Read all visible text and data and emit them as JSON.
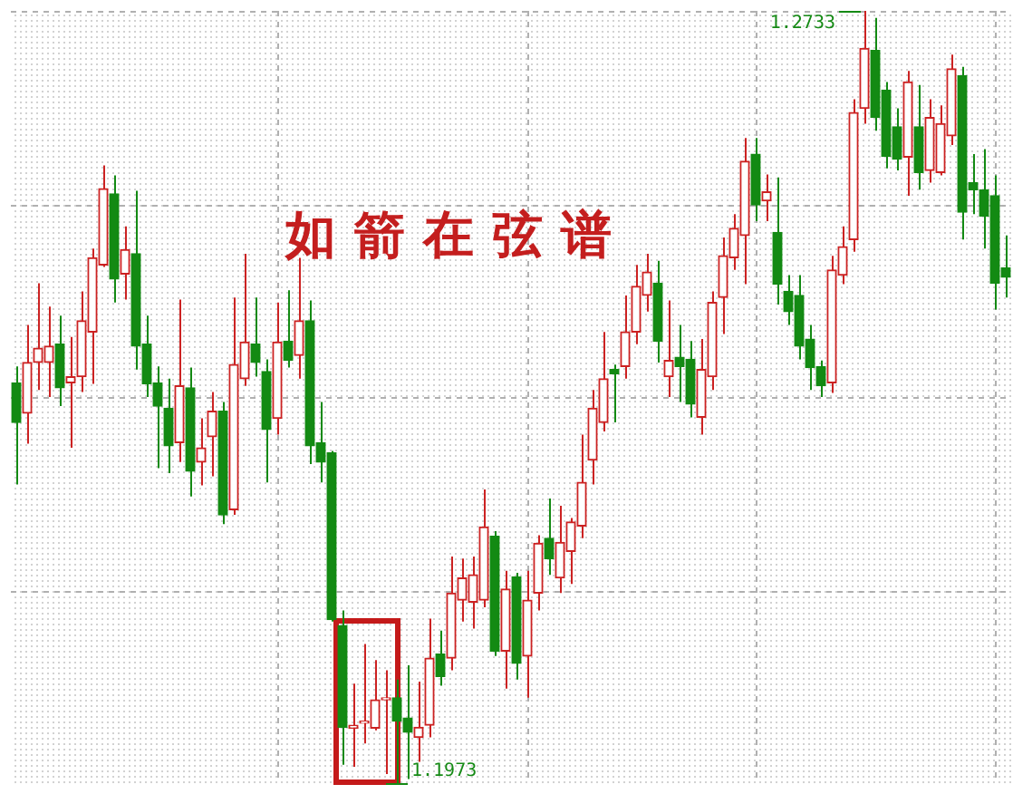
{
  "chart_data": {
    "type": "candlestick",
    "title": "如箭在弦谱",
    "categories": [
      null,
      null,
      null,
      null,
      null,
      null,
      null,
      null,
      null,
      null,
      null,
      null,
      null,
      null,
      null,
      null,
      null,
      null,
      null,
      null,
      null,
      null,
      null,
      null,
      null,
      null,
      null,
      null,
      null,
      null,
      null,
      null,
      null,
      null,
      null,
      null,
      null,
      null,
      null,
      null,
      null,
      null,
      null,
      null,
      null,
      null,
      null,
      null,
      null,
      null,
      null,
      null,
      null,
      null,
      null,
      null,
      null,
      null,
      null,
      null,
      null,
      null,
      null,
      null,
      null,
      null,
      null,
      null,
      null,
      null,
      null,
      null,
      null,
      null,
      null,
      null,
      null,
      null,
      null,
      null,
      null,
      null,
      null,
      null,
      null,
      null,
      null,
      null,
      null,
      null,
      null,
      null
    ],
    "ohlc": [
      [
        1.2367,
        1.2383,
        1.2267,
        1.2328
      ],
      [
        1.2337,
        1.2424,
        1.2307,
        1.2387
      ],
      [
        1.2387,
        1.2465,
        1.236,
        1.2401
      ],
      [
        1.2387,
        1.2442,
        1.2353,
        1.2403
      ],
      [
        1.2405,
        1.2433,
        1.2344,
        1.2362
      ],
      [
        1.2367,
        1.2412,
        1.2303,
        1.2373
      ],
      [
        1.2373,
        1.2457,
        1.2358,
        1.2428
      ],
      [
        1.2417,
        1.2499,
        1.2366,
        1.249
      ],
      [
        1.2483,
        1.2581,
        1.2481,
        1.2558
      ],
      [
        1.2553,
        1.2571,
        1.2446,
        1.2469
      ],
      [
        1.2474,
        1.2521,
        1.2449,
        1.2498
      ],
      [
        1.2494,
        1.2556,
        1.238,
        1.2403
      ],
      [
        1.2405,
        1.2433,
        1.2353,
        1.2366
      ],
      [
        1.2367,
        1.2383,
        1.2283,
        1.2344
      ],
      [
        1.2342,
        1.2371,
        1.2278,
        1.2305
      ],
      [
        1.2308,
        1.2449,
        1.2289,
        1.2364
      ],
      [
        1.2362,
        1.2382,
        1.2255,
        1.228
      ],
      [
        1.2289,
        1.2332,
        1.2266,
        1.2303
      ],
      [
        1.2314,
        1.2358,
        1.2275,
        1.2339
      ],
      [
        1.2339,
        1.2348,
        1.2228,
        1.2237
      ],
      [
        1.2242,
        1.2451,
        1.2237,
        1.2385
      ],
      [
        1.2371,
        1.2494,
        1.2364,
        1.2407
      ],
      [
        1.2405,
        1.2451,
        1.2373,
        1.2387
      ],
      [
        1.2378,
        1.239,
        1.2269,
        1.2321
      ],
      [
        1.2332,
        1.2446,
        1.2316,
        1.2407
      ],
      [
        1.2408,
        1.2458,
        1.2382,
        1.2389
      ],
      [
        1.2394,
        1.249,
        1.2371,
        1.2428
      ],
      [
        1.2428,
        1.2448,
        1.2287,
        1.2305
      ],
      [
        1.2308,
        1.2348,
        1.2269,
        1.2289
      ],
      [
        1.2298,
        1.23,
        1.2132,
        1.2134
      ],
      [
        1.2128,
        1.2143,
        1.1991,
        1.2028
      ],
      [
        1.2027,
        1.2071,
        1.1989,
        1.203
      ],
      [
        1.2032,
        1.211,
        1.2012,
        1.2034
      ],
      [
        1.2027,
        1.2094,
        1.2025,
        1.2055
      ],
      [
        1.2055,
        1.2084,
        1.1982,
        1.2057
      ],
      [
        1.2057,
        1.2075,
        1.1973,
        1.2034
      ],
      [
        1.2037,
        1.2089,
        1.1977,
        1.2023
      ],
      [
        1.2018,
        1.2073,
        1.1994,
        1.2028
      ],
      [
        1.203,
        1.2135,
        1.2018,
        1.2096
      ],
      [
        1.21,
        1.2123,
        1.2069,
        1.2078
      ],
      [
        1.2096,
        1.2196,
        1.2084,
        1.216
      ],
      [
        1.2153,
        1.2194,
        1.2132,
        1.2175
      ],
      [
        1.2151,
        1.2196,
        1.2125,
        1.2178
      ],
      [
        1.2153,
        1.2262,
        1.2146,
        1.2225
      ],
      [
        1.2216,
        1.2221,
        1.2098,
        1.2103
      ],
      [
        1.2103,
        1.2182,
        1.2066,
        1.2164
      ],
      [
        1.2176,
        1.218,
        1.2075,
        1.2091
      ],
      [
        1.2098,
        1.2182,
        1.2057,
        1.2153
      ],
      [
        1.216,
        1.2217,
        1.2143,
        1.2209
      ],
      [
        1.2214,
        1.2253,
        1.2178,
        1.2194
      ],
      [
        1.2175,
        1.2246,
        1.216,
        1.221
      ],
      [
        1.2201,
        1.2234,
        1.2169,
        1.223
      ],
      [
        1.2226,
        1.2316,
        1.2214,
        1.2269
      ],
      [
        1.2291,
        1.236,
        1.2267,
        1.2342
      ],
      [
        1.2328,
        1.2417,
        1.2319,
        1.2371
      ],
      [
        1.238,
        1.2385,
        1.2328,
        1.2376
      ],
      [
        1.2383,
        1.2453,
        1.2371,
        1.2417
      ],
      [
        1.2417,
        1.2483,
        1.2405,
        1.2462
      ],
      [
        1.2453,
        1.2494,
        1.2437,
        1.2476
      ],
      [
        1.2465,
        1.2487,
        1.2387,
        1.2408
      ],
      [
        1.2373,
        1.2448,
        1.2353,
        1.2389
      ],
      [
        1.2392,
        1.2424,
        1.2348,
        1.2383
      ],
      [
        1.239,
        1.2408,
        1.2333,
        1.2346
      ],
      [
        1.2333,
        1.241,
        1.2316,
        1.238
      ],
      [
        1.2373,
        1.2457,
        1.236,
        1.2446
      ],
      [
        1.2451,
        1.251,
        1.2415,
        1.2492
      ],
      [
        1.249,
        1.2533,
        1.2478,
        1.2519
      ],
      [
        1.2512,
        1.2608,
        1.2464,
        1.2585
      ],
      [
        1.2592,
        1.2608,
        1.2526,
        1.2542
      ],
      [
        1.2546,
        1.2572,
        1.2526,
        1.2555
      ],
      [
        1.2515,
        1.2569,
        1.2444,
        1.2464
      ],
      [
        1.2457,
        1.2473,
        1.2424,
        1.2437
      ],
      [
        1.2453,
        1.2473,
        1.239,
        1.2403
      ],
      [
        1.241,
        1.2424,
        1.236,
        1.2382
      ],
      [
        1.2383,
        1.2389,
        1.2353,
        1.2364
      ],
      [
        1.2367,
        1.2492,
        1.2357,
        1.2478
      ],
      [
        1.2473,
        1.2521,
        1.2464,
        1.2501
      ],
      [
        1.2508,
        1.2646,
        1.2496,
        1.2633
      ],
      [
        1.2637,
        1.2733,
        1.2622,
        1.2696
      ],
      [
        1.2694,
        1.2726,
        1.2615,
        1.2628
      ],
      [
        1.2655,
        1.2663,
        1.2578,
        1.259
      ],
      [
        1.2619,
        1.2637,
        1.2576,
        1.2587
      ],
      [
        1.2589,
        1.2674,
        1.2551,
        1.2663
      ],
      [
        1.2619,
        1.266,
        1.2557,
        1.2574
      ],
      [
        1.2576,
        1.2646,
        1.2564,
        1.2628
      ],
      [
        1.2574,
        1.264,
        1.2571,
        1.2622
      ],
      [
        1.261,
        1.269,
        1.2601,
        1.2676
      ],
      [
        1.2669,
        1.2678,
        1.2508,
        1.2535
      ],
      [
        1.2564,
        1.2592,
        1.2533,
        1.2557
      ],
      [
        1.2557,
        1.2597,
        1.2499,
        1.2531
      ],
      [
        1.2551,
        1.2571,
        1.2439,
        1.2465
      ],
      [
        1.248,
        1.2512,
        1.2451,
        1.2471
      ]
    ],
    "colors": [
      "#138a13",
      "#cc2222",
      "#cc2222",
      "#cc2222",
      "#138a13",
      "#cc2222",
      "#cc2222",
      "#cc2222",
      "#cc2222",
      "#138a13",
      "#cc2222",
      "#138a13",
      "#138a13",
      "#138a13",
      "#138a13",
      "#cc2222",
      "#138a13",
      "#cc2222",
      "#cc2222",
      "#138a13",
      "#cc2222",
      "#cc2222",
      "#138a13",
      "#138a13",
      "#cc2222",
      "#138a13",
      "#cc2222",
      "#138a13",
      "#138a13",
      "#138a13",
      "#138a13",
      "#cc2222",
      "#cc2222",
      "#cc2222",
      "#cc2222",
      "#138a13",
      "#138a13",
      "#cc2222",
      "#cc2222",
      "#138a13",
      "#cc2222",
      "#cc2222",
      "#cc2222",
      "#cc2222",
      "#138a13",
      "#cc2222",
      "#138a13",
      "#cc2222",
      "#cc2222",
      "#138a13",
      "#cc2222",
      "#cc2222",
      "#cc2222",
      "#cc2222",
      "#cc2222",
      "#138a13",
      "#cc2222",
      "#cc2222",
      "#cc2222",
      "#138a13",
      "#cc2222",
      "#138a13",
      "#138a13",
      "#cc2222",
      "#cc2222",
      "#cc2222",
      "#cc2222",
      "#cc2222",
      "#138a13",
      "#cc2222",
      "#138a13",
      "#138a13",
      "#138a13",
      "#138a13",
      "#138a13",
      "#cc2222",
      "#cc2222",
      "#cc2222",
      "#cc2222",
      "#138a13",
      "#138a13",
      "#138a13",
      "#cc2222",
      "#138a13",
      "#cc2222",
      "#cc2222",
      "#cc2222",
      "#138a13",
      "#138a13",
      "#138a13",
      "#138a13",
      "#138a13"
    ],
    "annotations": [
      "1.2733",
      "1.1973"
    ],
    "grid": true,
    "tick_labels": false
  }
}
